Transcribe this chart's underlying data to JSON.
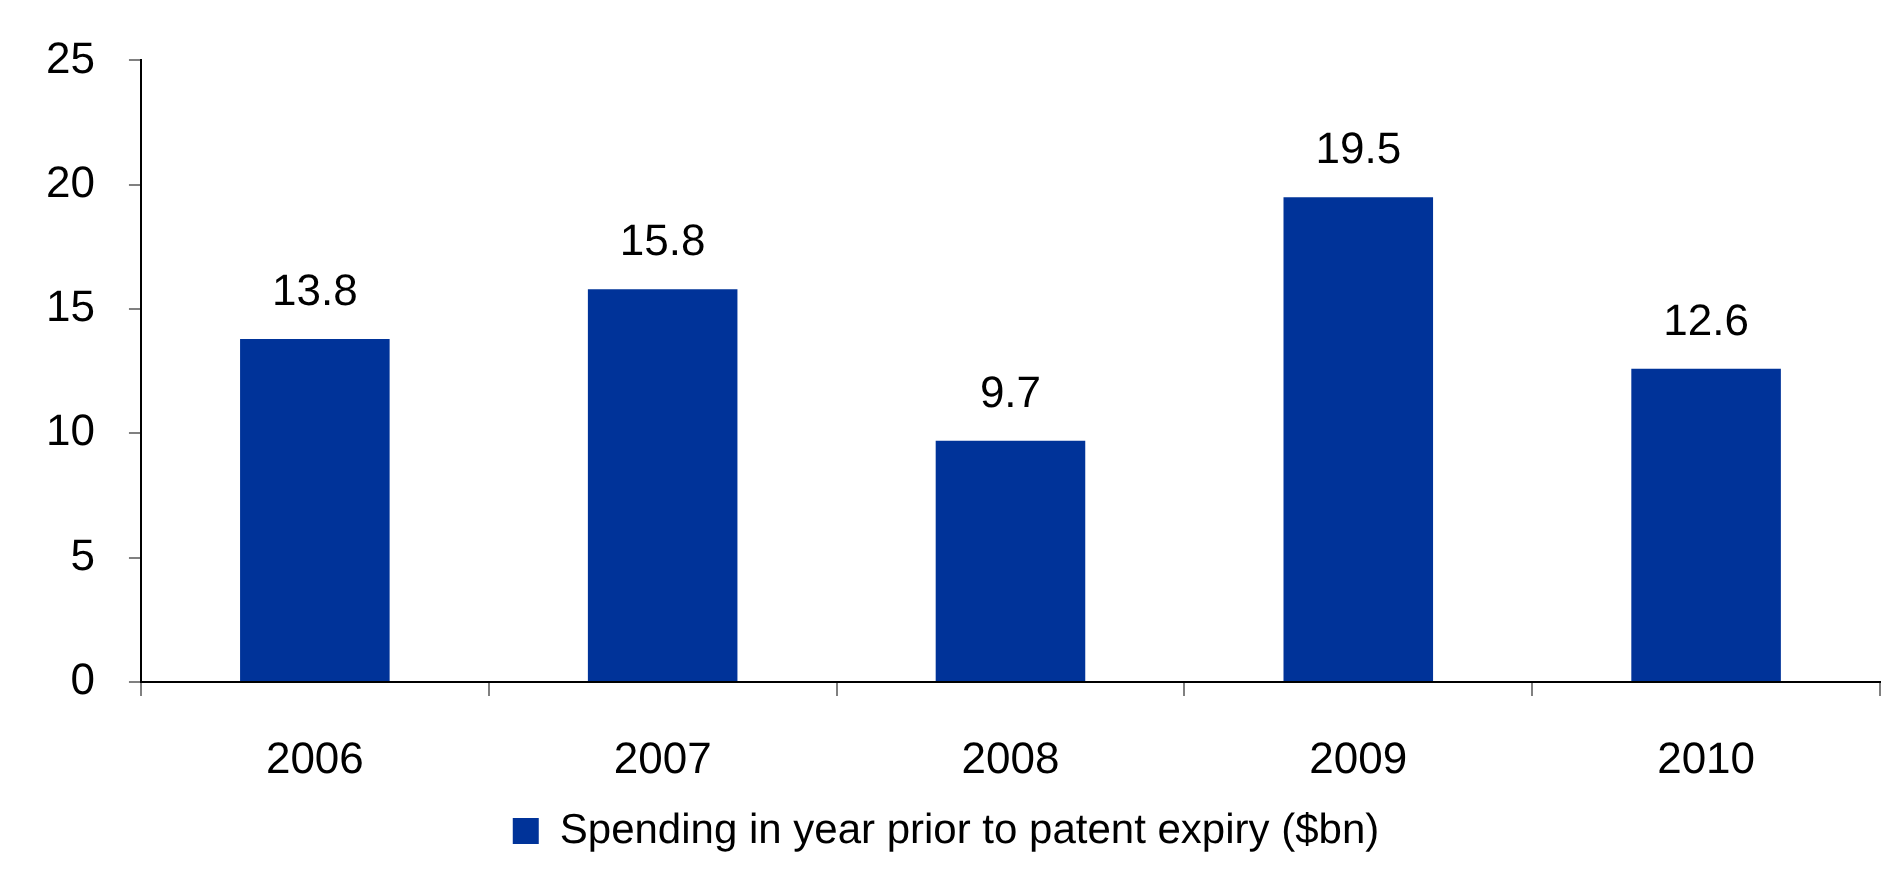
{
  "chart_data": {
    "type": "bar",
    "categories": [
      "2006",
      "2007",
      "2008",
      "2009",
      "2010"
    ],
    "series": [
      {
        "name": "Spending in year prior to patent expiry ($bn)",
        "color": "#003399",
        "values": [
          13.8,
          15.8,
          9.7,
          19.5,
          12.6
        ]
      }
    ],
    "ylim": [
      0,
      25
    ],
    "yticks": [
      0,
      5,
      10,
      15,
      20,
      25
    ],
    "grid": false,
    "legend": "bottom",
    "data_labels": true
  }
}
